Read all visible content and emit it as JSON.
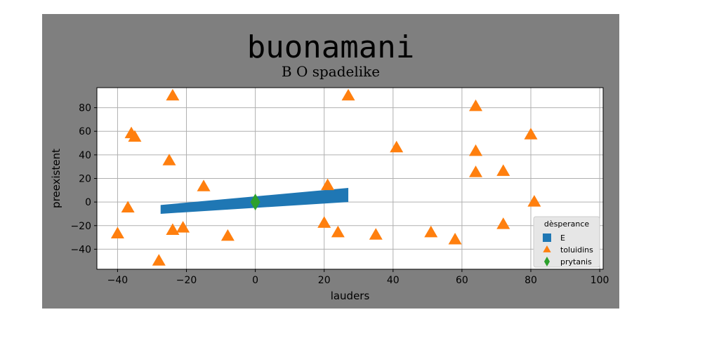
{
  "chart_data": {
    "type": "scatter",
    "title": "buonamani",
    "subtitle": "B O spadelike",
    "xlabel": "lauders",
    "ylabel": "preexistent",
    "xlim": [
      -46,
      101
    ],
    "ylim": [
      -57,
      97
    ],
    "xticks": [
      -40,
      -20,
      0,
      20,
      40,
      60,
      80,
      100
    ],
    "yticks": [
      -40,
      -20,
      0,
      20,
      40,
      60,
      80
    ],
    "grid": true,
    "legend": {
      "title": "dèsperance",
      "placement": "lower-right",
      "entries": [
        {
          "label": "E",
          "marker": "square",
          "color": "#1f77b4"
        },
        {
          "label": "toluidins",
          "marker": "triangle",
          "color": "#ff7f0e"
        },
        {
          "label": "prytanis",
          "marker": "diamond",
          "color": "#2ca02c"
        }
      ]
    },
    "series": [
      {
        "name": "E",
        "marker": "band",
        "color": "#1f77b4",
        "polygon": [
          [
            -27.5,
            -2.5
          ],
          [
            27,
            12
          ],
          [
            27,
            0
          ],
          [
            -27.5,
            -10
          ]
        ]
      },
      {
        "name": "toluidins",
        "marker": "triangle",
        "color": "#ff7f0e",
        "points": [
          [
            -24,
            90
          ],
          [
            27,
            90
          ],
          [
            64,
            81
          ],
          [
            -36,
            58
          ],
          [
            -35,
            55
          ],
          [
            80,
            57
          ],
          [
            41,
            46
          ],
          [
            64,
            43
          ],
          [
            -25,
            35
          ],
          [
            64,
            25
          ],
          [
            72,
            26
          ],
          [
            -15,
            13
          ],
          [
            21,
            14
          ],
          [
            81,
            0
          ],
          [
            -37,
            -5
          ],
          [
            20,
            -18
          ],
          [
            72,
            -19
          ],
          [
            -21,
            -22
          ],
          [
            -24,
            -24
          ],
          [
            24,
            -26
          ],
          [
            51,
            -26
          ],
          [
            -40,
            -27
          ],
          [
            -8,
            -29
          ],
          [
            35,
            -28
          ],
          [
            58,
            -32
          ],
          [
            -28,
            -50
          ]
        ]
      },
      {
        "name": "prytanis",
        "marker": "diamond",
        "color": "#2ca02c",
        "points": [
          [
            0,
            0
          ]
        ]
      }
    ]
  }
}
